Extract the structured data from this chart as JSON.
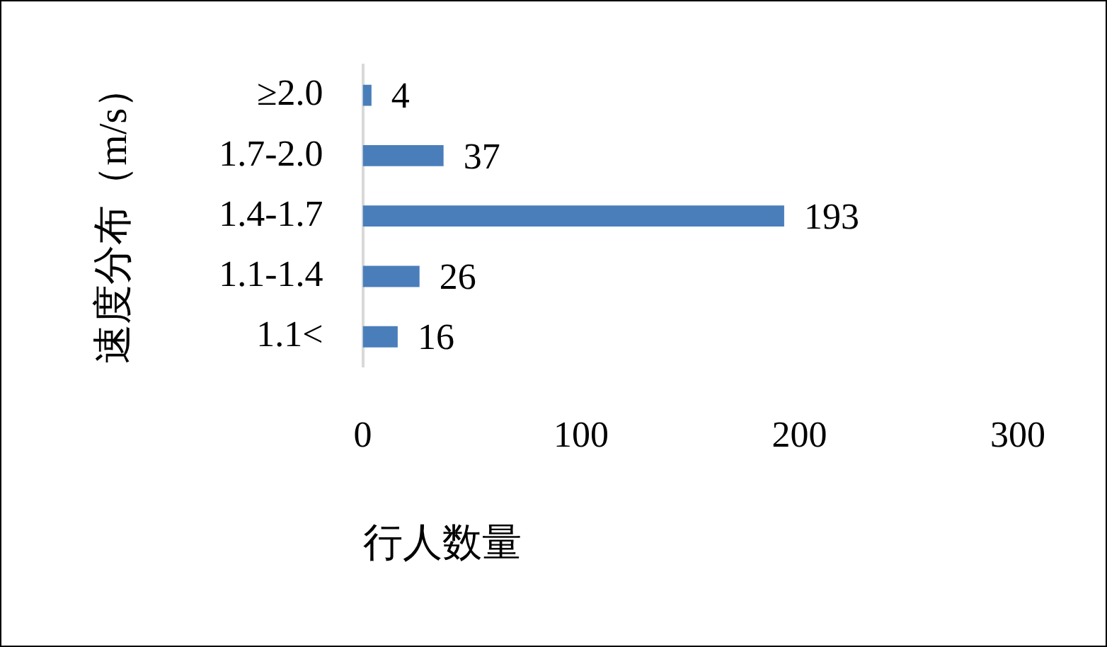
{
  "chart_data": {
    "type": "bar",
    "orientation": "horizontal",
    "xlabel": "行人数量",
    "ylabel": "速度分布（m/s）",
    "categories": [
      "≥2.0",
      "1.7-2.0",
      "1.4-1.7",
      "1.1-1.4",
      "1.1<"
    ],
    "values": [
      4,
      37,
      193,
      26,
      16
    ],
    "color": "#4a7ebb",
    "xlim": [
      0,
      300
    ],
    "xticks": [
      0,
      100,
      200,
      300
    ],
    "grid": false,
    "data_labels": true
  }
}
